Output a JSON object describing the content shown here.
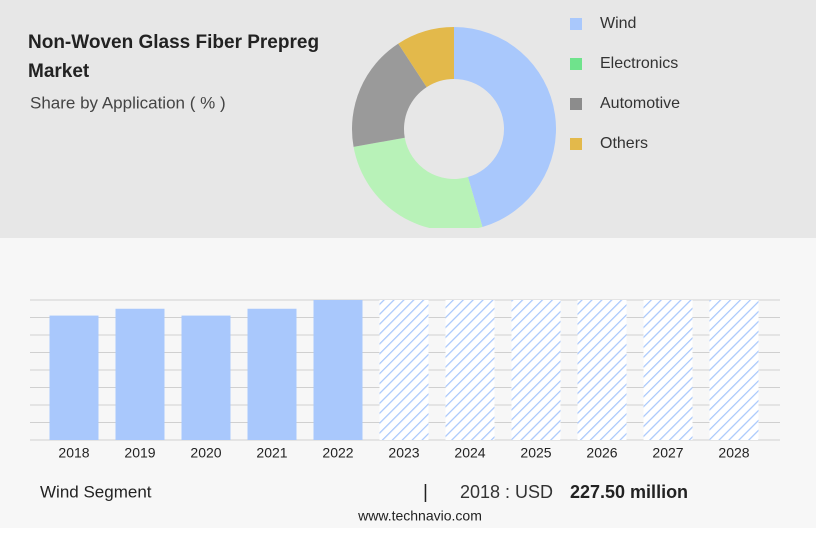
{
  "chart_data": [
    {
      "type": "donut",
      "title": "Non-Woven Glass Fiber Prepreg Market",
      "subtitle": "Share by Application ( % )",
      "categories": [
        "Wind",
        "Electronics",
        "Automotive",
        "Others"
      ],
      "values": [
        45.5,
        26.7,
        18.6,
        9.2
      ],
      "colors": [
        "#a9c8fc",
        "#b8f2b8",
        "#9a9a9a",
        "#e3b94b"
      ],
      "legend_colors": [
        "#a9c8fc",
        "#6fe38c",
        "#8c8c8c",
        "#e3b94b"
      ]
    },
    {
      "type": "bar",
      "categories": [
        "2018",
        "2019",
        "2020",
        "2021",
        "2022",
        "2023",
        "2024",
        "2025",
        "2026",
        "2027",
        "2028"
      ],
      "values": [
        227.5,
        240,
        227.5,
        240,
        256,
        null,
        null,
        null,
        null,
        null,
        null
      ],
      "color": "#a9c8fc",
      "ylim": [
        0,
        256
      ],
      "yticks": [
        0,
        32,
        64,
        96,
        128,
        160,
        192,
        224,
        256
      ],
      "grid": true,
      "segment": "Wind Segment",
      "highlight_text": "2018 : USD",
      "highlight_value": "227.50 million",
      "source": "www.technavio.com"
    }
  ]
}
